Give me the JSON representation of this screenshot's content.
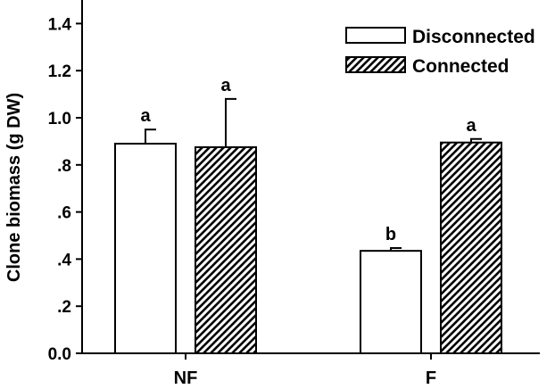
{
  "chart_data": {
    "type": "bar",
    "categories": [
      "NF",
      "F"
    ],
    "series": [
      {
        "name": "Disconnected",
        "values": [
          0.89,
          0.435
        ],
        "errors": [
          0.06,
          0.012
        ],
        "letters": [
          "a",
          "b"
        ],
        "pattern": "solid-white"
      },
      {
        "name": "Connected",
        "values": [
          0.875,
          0.895
        ],
        "errors": [
          0.205,
          0.015
        ],
        "letters": [
          "a",
          "a"
        ],
        "pattern": "diagonal-hatch"
      }
    ],
    "title": "",
    "xlabel": "",
    "ylabel": "Clone biomass (g DW)",
    "ylim": [
      0,
      1.5
    ],
    "yticks": [
      0.0,
      0.2,
      0.4,
      0.6,
      0.8,
      1.0,
      1.2,
      1.4
    ],
    "ytick_labels": [
      "0.0",
      ".2",
      ".4",
      ".6",
      ".8",
      "1.0",
      "1.2",
      "1.4"
    ],
    "grid": false,
    "legend": "top-right",
    "colors": {
      "bar_fill": "#ffffff",
      "hatch": "#000000",
      "axis": "#000000"
    }
  }
}
